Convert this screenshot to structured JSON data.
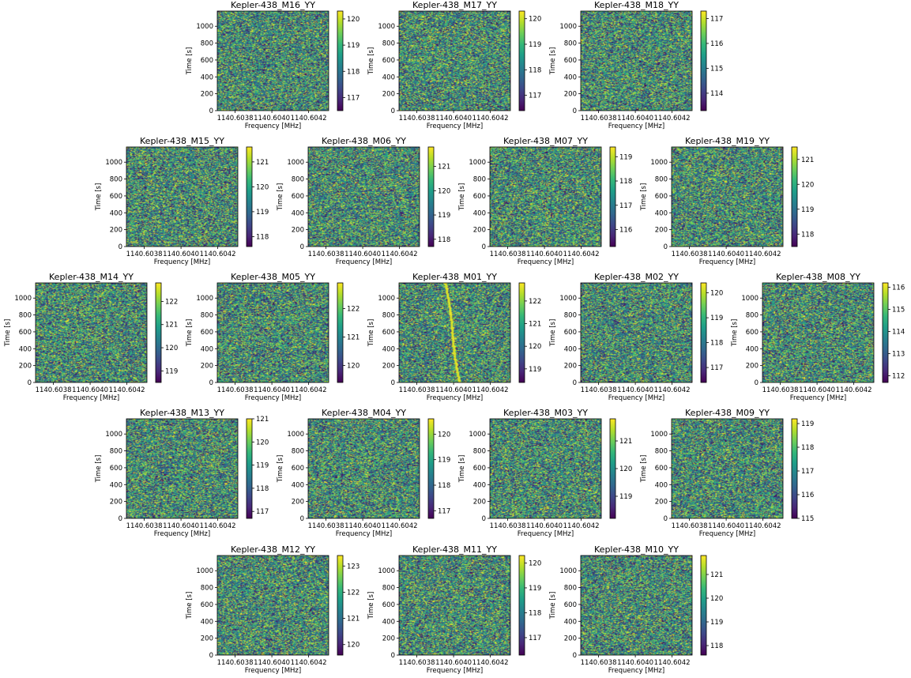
{
  "figure": {
    "background": "#ffffff",
    "colormap": "viridis",
    "viridis_stops": [
      "#440154",
      "#482878",
      "#3e4989",
      "#31688e",
      "#26828e",
      "#1f9e89",
      "#35b779",
      "#6ece58",
      "#b5de2b",
      "#fde725"
    ]
  },
  "chart_data": [
    {
      "type": "heatmap",
      "title": "Kepler-438_M16_YY",
      "xlabel": "Frequency [MHz]",
      "ylabel": "Time [s]",
      "x_ticks": [
        "1140.6038",
        "1140.6040",
        "1140.6042"
      ],
      "y_ticks": [
        0,
        200,
        400,
        600,
        800,
        1000
      ],
      "ylim": [
        0,
        1180
      ],
      "colorbar": {
        "min": 116.5,
        "max": 120.3,
        "ticks": [
          117,
          118,
          119,
          120
        ]
      }
    },
    {
      "type": "heatmap",
      "title": "Kepler-438_M17_YY",
      "xlabel": "Frequency [MHz]",
      "ylabel": "Time [s]",
      "x_ticks": [
        "1140.6038",
        "1140.6040",
        "1140.6042"
      ],
      "y_ticks": [
        0,
        200,
        400,
        600,
        800,
        1000
      ],
      "ylim": [
        0,
        1180
      ],
      "colorbar": {
        "min": 116.4,
        "max": 120.3,
        "ticks": [
          117,
          118,
          119,
          120
        ]
      }
    },
    {
      "type": "heatmap",
      "title": "Kepler-438_M18_YY",
      "xlabel": "Frequency [MHz]",
      "ylabel": "Time [s]",
      "x_ticks": [
        "1140.6038",
        "1140.6040",
        "1140.6042"
      ],
      "y_ticks": [
        0,
        200,
        400,
        600,
        800,
        1000
      ],
      "ylim": [
        0,
        1180
      ],
      "colorbar": {
        "min": 113.3,
        "max": 117.3,
        "ticks": [
          114,
          115,
          116,
          117
        ]
      }
    },
    {
      "type": "heatmap",
      "title": "Kepler-438_M15_YY",
      "xlabel": "Frequency [MHz]",
      "ylabel": "Time [s]",
      "x_ticks": [
        "1140.6038",
        "1140.6040",
        "1140.6042"
      ],
      "y_ticks": [
        0,
        200,
        400,
        600,
        800,
        1000
      ],
      "ylim": [
        0,
        1180
      ],
      "colorbar": {
        "min": 117.6,
        "max": 121.6,
        "ticks": [
          118,
          119,
          120,
          121
        ]
      }
    },
    {
      "type": "heatmap",
      "title": "Kepler-438_M06_YY",
      "xlabel": "Frequency [MHz]",
      "ylabel": "Time [s]",
      "x_ticks": [
        "1140.6038",
        "1140.6040",
        "1140.6042"
      ],
      "y_ticks": [
        0,
        200,
        400,
        600,
        800,
        1000
      ],
      "ylim": [
        0,
        1180
      ],
      "colorbar": {
        "min": 117.7,
        "max": 121.8,
        "ticks": [
          118,
          119,
          120,
          121
        ]
      }
    },
    {
      "type": "heatmap",
      "title": "Kepler-438_M07_YY",
      "xlabel": "Frequency [MHz]",
      "ylabel": "Time [s]",
      "x_ticks": [
        "1140.6038",
        "1140.6040",
        "1140.6042"
      ],
      "y_ticks": [
        0,
        200,
        400,
        600,
        800,
        1000
      ],
      "ylim": [
        0,
        1180
      ],
      "colorbar": {
        "min": 115.3,
        "max": 119.4,
        "ticks": [
          116,
          117,
          118,
          119
        ]
      }
    },
    {
      "type": "heatmap",
      "title": "Kepler-438_M19_YY",
      "xlabel": "Frequency [MHz]",
      "ylabel": "Time [s]",
      "x_ticks": [
        "1140.6038",
        "1140.6040",
        "1140.6042"
      ],
      "y_ticks": [
        0,
        200,
        400,
        600,
        800,
        1000
      ],
      "ylim": [
        0,
        1180
      ],
      "colorbar": {
        "min": 117.5,
        "max": 121.5,
        "ticks": [
          118,
          119,
          120,
          121
        ]
      }
    },
    {
      "type": "heatmap",
      "title": "Kepler-438_M14_YY",
      "xlabel": "Frequency [MHz]",
      "ylabel": "Time [s]",
      "x_ticks": [
        "1140.6038",
        "1140.6040",
        "1140.6042"
      ],
      "y_ticks": [
        0,
        200,
        400,
        600,
        800,
        1000
      ],
      "ylim": [
        0,
        1180
      ],
      "colorbar": {
        "min": 118.5,
        "max": 122.8,
        "ticks": [
          119,
          120,
          121,
          122
        ]
      }
    },
    {
      "type": "heatmap",
      "title": "Kepler-438_M05_YY",
      "xlabel": "Frequency [MHz]",
      "ylabel": "Time [s]",
      "x_ticks": [
        "1140.6038",
        "1140.6040",
        "1140.6042"
      ],
      "y_ticks": [
        0,
        200,
        400,
        600,
        800,
        1000
      ],
      "ylim": [
        0,
        1180
      ],
      "colorbar": {
        "min": 119.4,
        "max": 122.9,
        "ticks": [
          120,
          121,
          122
        ]
      }
    },
    {
      "type": "heatmap",
      "title": "Kepler-438_M01_YY",
      "xlabel": "Frequency [MHz]",
      "ylabel": "Time [s]",
      "x_ticks": [
        "1140.6038",
        "1140.6040",
        "1140.6042"
      ],
      "y_ticks": [
        0,
        200,
        400,
        600,
        800,
        1000
      ],
      "ylim": [
        0,
        1180
      ],
      "colorbar": {
        "min": 118.4,
        "max": 122.8,
        "ticks": [
          119,
          120,
          121,
          122
        ]
      },
      "drifting_signal": true
    },
    {
      "type": "heatmap",
      "title": "Kepler-438_M02_YY",
      "xlabel": "Frequency [MHz]",
      "ylabel": "Time [s]",
      "x_ticks": [
        "1140.6038",
        "1140.6040",
        "1140.6042"
      ],
      "y_ticks": [
        0,
        200,
        400,
        600,
        800,
        1000
      ],
      "ylim": [
        0,
        1180
      ],
      "colorbar": {
        "min": 116.4,
        "max": 120.4,
        "ticks": [
          117,
          118,
          119,
          120
        ]
      }
    },
    {
      "type": "heatmap",
      "title": "Kepler-438_M08_YY",
      "xlabel": "Frequency [MHz]",
      "ylabel": "Time [s]",
      "x_ticks": [
        "1140.6038",
        "1140.6040",
        "1140.6042"
      ],
      "y_ticks": [
        0,
        200,
        400,
        600,
        800,
        1000
      ],
      "ylim": [
        0,
        1180
      ],
      "colorbar": {
        "min": 111.7,
        "max": 116.2,
        "ticks": [
          112,
          113,
          114,
          115,
          116
        ]
      }
    },
    {
      "type": "heatmap",
      "title": "Kepler-438_M13_YY",
      "xlabel": "Frequency [MHz]",
      "ylabel": "Time [s]",
      "x_ticks": [
        "1140.6038",
        "1140.6040",
        "1140.6042"
      ],
      "y_ticks": [
        0,
        200,
        400,
        600,
        800,
        1000
      ],
      "ylim": [
        0,
        1180
      ],
      "colorbar": {
        "min": 116.7,
        "max": 121.0,
        "ticks": [
          117,
          118,
          119,
          120,
          121
        ]
      }
    },
    {
      "type": "heatmap",
      "title": "Kepler-438_M04_YY",
      "xlabel": "Frequency [MHz]",
      "ylabel": "Time [s]",
      "x_ticks": [
        "1140.6038",
        "1140.6040",
        "1140.6042"
      ],
      "y_ticks": [
        0,
        200,
        400,
        600,
        800,
        1000
      ],
      "ylim": [
        0,
        1180
      ],
      "colorbar": {
        "min": 116.7,
        "max": 120.6,
        "ticks": [
          117,
          118,
          119,
          120
        ]
      }
    },
    {
      "type": "heatmap",
      "title": "Kepler-438_M03_YY",
      "xlabel": "Frequency [MHz]",
      "ylabel": "Time [s]",
      "x_ticks": [
        "1140.6038",
        "1140.6040",
        "1140.6042"
      ],
      "y_ticks": [
        0,
        200,
        400,
        600,
        800,
        1000
      ],
      "ylim": [
        0,
        1180
      ],
      "colorbar": {
        "min": 118.2,
        "max": 121.8,
        "ticks": [
          119,
          120,
          121
        ]
      }
    },
    {
      "type": "heatmap",
      "title": "Kepler-438_M09_YY",
      "xlabel": "Frequency [MHz]",
      "ylabel": "Time [s]",
      "x_ticks": [
        "1140.6038",
        "1140.6040",
        "1140.6042"
      ],
      "y_ticks": [
        0,
        200,
        400,
        600,
        800,
        1000
      ],
      "ylim": [
        0,
        1180
      ],
      "colorbar": {
        "min": 115.0,
        "max": 119.2,
        "ticks": [
          115,
          116,
          117,
          118,
          119
        ]
      }
    },
    {
      "type": "heatmap",
      "title": "Kepler-438_M12_YY",
      "xlabel": "Frequency [MHz]",
      "ylabel": "Time [s]",
      "x_ticks": [
        "1140.6038",
        "1140.6040",
        "1140.6042"
      ],
      "y_ticks": [
        0,
        200,
        400,
        600,
        800,
        1000
      ],
      "ylim": [
        0,
        1180
      ],
      "colorbar": {
        "min": 119.6,
        "max": 123.4,
        "ticks": [
          120,
          121,
          122,
          123
        ]
      }
    },
    {
      "type": "heatmap",
      "title": "Kepler-438_M11_YY",
      "xlabel": "Frequency [MHz]",
      "ylabel": "Time [s]",
      "x_ticks": [
        "1140.6038",
        "1140.6040",
        "1140.6042"
      ],
      "y_ticks": [
        0,
        200,
        400,
        600,
        800,
        1000
      ],
      "ylim": [
        0,
        1180
      ],
      "colorbar": {
        "min": 116.3,
        "max": 120.3,
        "ticks": [
          117,
          118,
          119,
          120
        ]
      }
    },
    {
      "type": "heatmap",
      "title": "Kepler-438_M10_YY",
      "xlabel": "Frequency [MHz]",
      "ylabel": "Time [s]",
      "x_ticks": [
        "1140.6038",
        "1140.6040",
        "1140.6042"
      ],
      "y_ticks": [
        0,
        200,
        400,
        600,
        800,
        1000
      ],
      "ylim": [
        0,
        1180
      ],
      "colorbar": {
        "min": 117.6,
        "max": 121.8,
        "ticks": [
          118,
          119,
          120,
          121
        ]
      }
    }
  ]
}
